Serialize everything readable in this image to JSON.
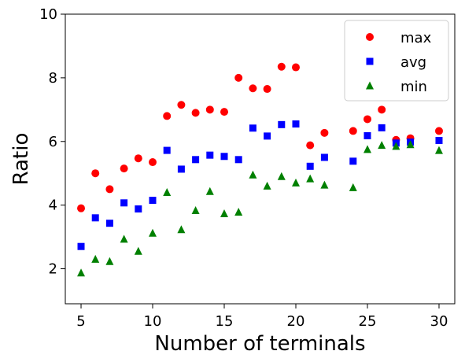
{
  "chart_data": {
    "type": "scatter",
    "title": "",
    "xlabel": "Number of terminals",
    "ylabel": "Ratio",
    "xlim": [
      3.9,
      31.1
    ],
    "ylim": [
      0.9,
      10.0
    ],
    "xticks": [
      5,
      10,
      15,
      20,
      25,
      30
    ],
    "yticks": [
      2,
      4,
      6,
      8,
      10
    ],
    "grid": false,
    "legend_position": "top-right",
    "x": [
      5,
      6,
      7,
      8,
      9,
      10,
      11,
      12,
      13,
      14,
      15,
      16,
      17,
      18,
      19,
      20,
      21,
      22,
      24,
      25,
      26,
      27,
      28,
      30
    ],
    "series": [
      {
        "name": "max",
        "color": "#ff0000",
        "marker": "circle",
        "values": [
          3.9,
          5.0,
          4.5,
          5.15,
          5.47,
          5.35,
          6.8,
          7.15,
          6.9,
          7.0,
          6.93,
          8.0,
          7.67,
          7.65,
          8.35,
          8.33,
          5.88,
          6.27,
          6.33,
          6.7,
          7.0,
          6.05,
          6.1,
          6.33
        ]
      },
      {
        "name": "avg",
        "color": "#0000ff",
        "marker": "square",
        "values": [
          2.7,
          3.6,
          3.43,
          4.07,
          3.88,
          4.15,
          5.72,
          5.13,
          5.43,
          5.57,
          5.53,
          5.43,
          6.42,
          6.17,
          6.53,
          6.55,
          5.22,
          5.5,
          5.38,
          6.18,
          6.43,
          5.95,
          5.98,
          6.03
        ]
      },
      {
        "name": "min",
        "color": "#008000",
        "marker": "triangle",
        "values": [
          1.87,
          2.3,
          2.23,
          2.93,
          2.55,
          3.12,
          4.4,
          3.23,
          3.83,
          4.43,
          3.73,
          3.78,
          4.95,
          4.6,
          4.9,
          4.7,
          4.83,
          4.63,
          4.55,
          5.75,
          5.88,
          5.85,
          5.9,
          5.72
        ]
      }
    ]
  }
}
